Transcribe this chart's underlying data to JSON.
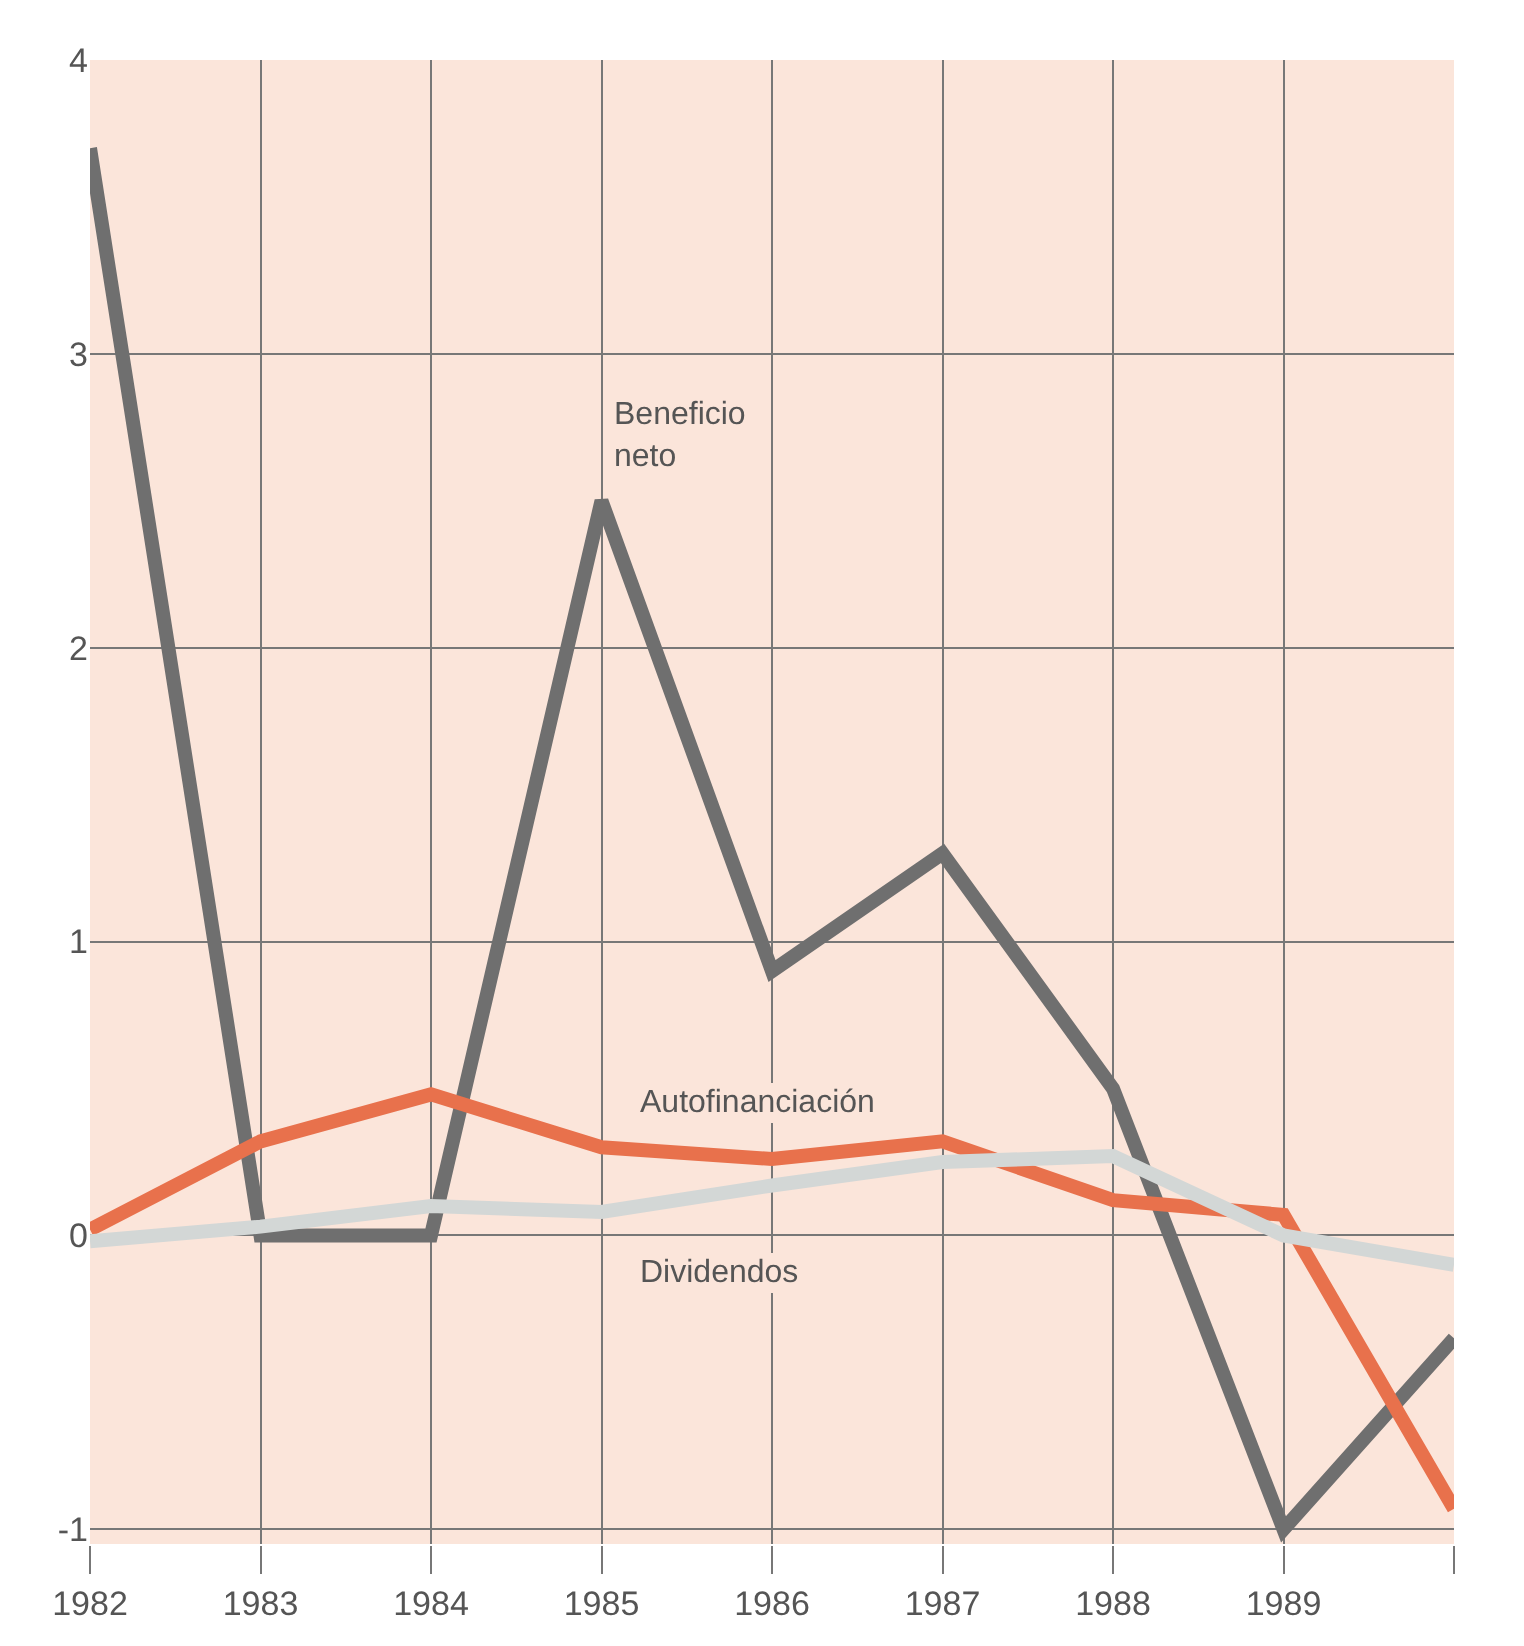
{
  "chart_data": {
    "type": "line",
    "x": [
      1982,
      1983,
      1984,
      1985,
      1986,
      1987,
      1988,
      1989,
      1990
    ],
    "series": [
      {
        "name": "Beneficio neto",
        "color": "#6f6f6f",
        "values": [
          3.7,
          0,
          0,
          2.5,
          0.9,
          1.3,
          0.5,
          -1.0,
          -0.35
        ]
      },
      {
        "name": "Autofinanciación",
        "color": "#e8714c",
        "values": [
          0.02,
          0.32,
          0.48,
          0.3,
          0.26,
          0.32,
          0.12,
          0.07,
          -0.93
        ]
      },
      {
        "name": "Dividendos",
        "color": "#d3d7d6",
        "values": [
          -0.02,
          0.03,
          0.1,
          0.08,
          0.17,
          0.25,
          0.27,
          0.0,
          -0.1
        ]
      }
    ],
    "xlim": [
      1982,
      1990
    ],
    "xticks": [
      1982,
      1983,
      1984,
      1985,
      1986,
      1987,
      1988,
      1989,
      {
        "value": 1990,
        "label": null
      }
    ],
    "ylim": [
      -1.05,
      4
    ],
    "yticks": [
      -1,
      0,
      1,
      2,
      3,
      4
    ],
    "grid": true,
    "legend": false,
    "marker": "none",
    "line_style": "solid"
  }
}
